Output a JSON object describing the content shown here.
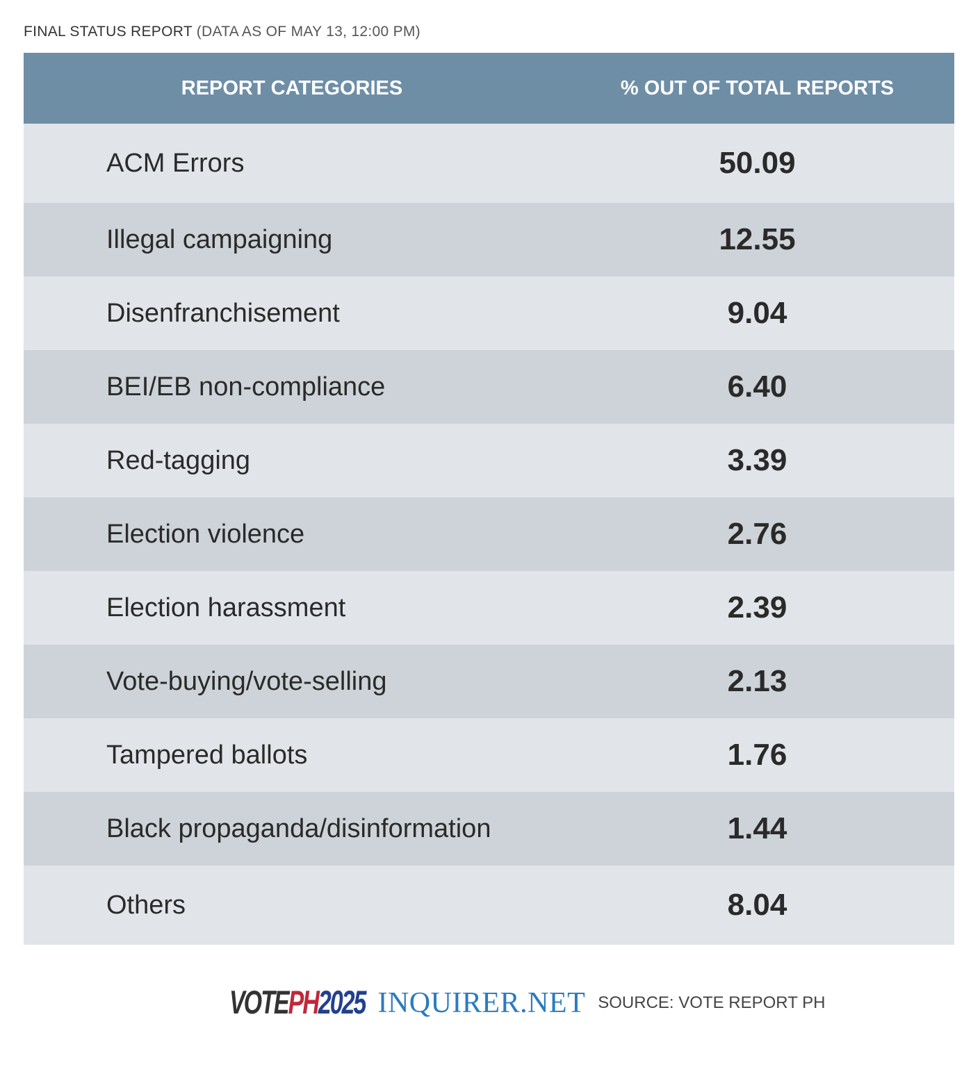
{
  "title": {
    "main": "FINAL STATUS REPORT",
    "sub": "(DATA AS OF MAY 13, 12:00 PM)"
  },
  "colors": {
    "header": "#6e8ea6",
    "row_light": "#e1e5e9",
    "row_dark": "#cdd3d8",
    "brand": "#2b7bbf"
  },
  "chart_data": {
    "type": "table",
    "columns": [
      "REPORT CATEGORIES",
      "% OUT OF TOTAL REPORTS"
    ],
    "rows": [
      {
        "category": "ACM Errors",
        "value": "50.09"
      },
      {
        "category": "Illegal campaigning",
        "value": "12.55"
      },
      {
        "category": "Disenfranchisement",
        "value": "9.04"
      },
      {
        "category": "BEI/EB non-compliance",
        "value": "6.40"
      },
      {
        "category": "Red-tagging",
        "value": "3.39"
      },
      {
        "category": "Election violence",
        "value": "2.76"
      },
      {
        "category": "Election harassment",
        "value": "2.39"
      },
      {
        "category": "Vote-buying/vote-selling",
        "value": "2.13"
      },
      {
        "category": "Tampered ballots",
        "value": "1.76"
      },
      {
        "category": "Black propaganda/disinformation",
        "value": "1.44"
      },
      {
        "category": "Others",
        "value": "8.04"
      }
    ]
  },
  "footer": {
    "logo_vote": "VOTE",
    "logo_ph": "PH",
    "logo_year": "2025",
    "brand": "INQUIRER.NET",
    "source": "SOURCE: VOTE REPORT PH"
  }
}
